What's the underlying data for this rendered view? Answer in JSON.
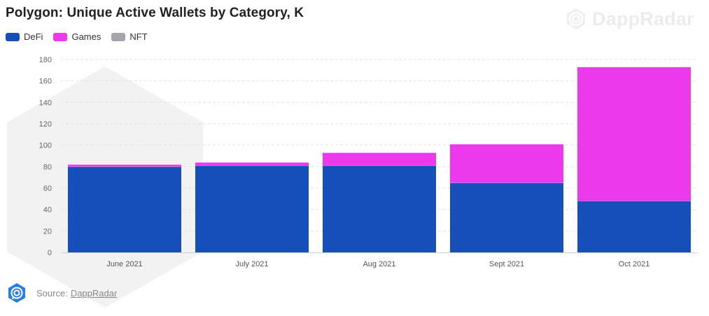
{
  "header": {
    "title": "Polygon: Unique Active Wallets by Category, K",
    "brand": "DappRadar"
  },
  "footer": {
    "source_label": "Source:",
    "source_link": "DappRadar"
  },
  "chart_data": {
    "type": "bar",
    "stacked": true,
    "title": "Polygon: Unique Active Wallets by Category, K",
    "categories": [
      "June 2021",
      "July 2021",
      "Aug 2021",
      "Sept 2021",
      "Oct 2021"
    ],
    "series": [
      {
        "name": "DeFi",
        "color": "#174fba",
        "values": [
          80,
          81,
          81,
          65,
          48
        ]
      },
      {
        "name": "Games",
        "color": "#ec39ec",
        "values": [
          2,
          3,
          12,
          36,
          125
        ]
      },
      {
        "name": "NFT",
        "color": "#a4a4aa",
        "values": [
          0,
          0,
          0,
          0,
          0
        ]
      }
    ],
    "ylim": [
      0,
      180
    ],
    "yticks": [
      0,
      20,
      40,
      60,
      80,
      100,
      120,
      140,
      160,
      180
    ],
    "grid": true,
    "legend": "top-left"
  }
}
